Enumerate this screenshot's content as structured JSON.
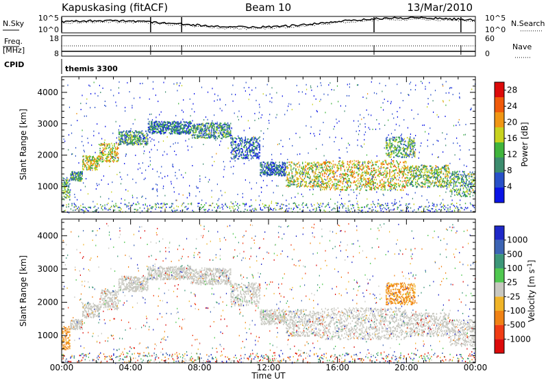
{
  "header": {
    "station": "Kapuskasing (fitACF)",
    "beam": "Beam 10",
    "date": "13/Mar/2010"
  },
  "summary_panels": {
    "nsky_label": "N.Sky",
    "nsearch_label": "N.Search",
    "noise_ticks": [
      "10^5",
      "10^0"
    ],
    "freq_label": "Freq.",
    "freq_unit": "[MHz]",
    "freq_ticks": [
      "18",
      "8"
    ],
    "nave_label": "Nave",
    "nave_ticks": [
      "60",
      "0"
    ],
    "cpid_label": "CPID",
    "cpid_value": "themis 3300"
  },
  "chart_data": [
    {
      "type": "heatmap",
      "name": "power",
      "xlabel": "Time UT",
      "ylabel": "Slant Range [km]",
      "x_ticks": [
        "00:00",
        "04:00",
        "08:00",
        "12:00",
        "16:00",
        "20:00",
        "00:00"
      ],
      "y_ticks": [
        1000,
        2000,
        3000,
        4000
      ],
      "xlim_hours": [
        0,
        24
      ],
      "ylim_km": [
        180,
        4500
      ],
      "colorbar": {
        "label": "Power [dB]",
        "ticks": [
          4,
          8,
          12,
          16,
          20,
          24,
          28
        ],
        "range": [
          0,
          30
        ],
        "colors": [
          "#0a14e6",
          "#2850c8",
          "#3c8c6e",
          "#40b43c",
          "#c8d21e",
          "#f09614",
          "#f05a0a",
          "#dc0a0a"
        ]
      },
      "echo_regions": [
        {
          "t_start": 0.0,
          "t_end": 0.5,
          "r_low": 600,
          "r_high": 1300,
          "level": 12
        },
        {
          "t_start": 0.5,
          "t_end": 1.2,
          "r_low": 1200,
          "r_high": 1500,
          "level": 10
        },
        {
          "t_start": 1.2,
          "t_end": 2.2,
          "r_low": 1550,
          "r_high": 2000,
          "level": 16
        },
        {
          "t_start": 2.2,
          "t_end": 3.3,
          "r_low": 1800,
          "r_high": 2400,
          "level": 18
        },
        {
          "t_start": 3.3,
          "t_end": 5.0,
          "r_low": 2350,
          "r_high": 2800,
          "level": 10
        },
        {
          "t_start": 5.0,
          "t_end": 7.5,
          "r_low": 2700,
          "r_high": 3100,
          "level": 8
        },
        {
          "t_start": 7.5,
          "t_end": 9.8,
          "r_low": 2550,
          "r_high": 3050,
          "level": 10
        },
        {
          "t_start": 9.8,
          "t_end": 11.5,
          "r_low": 1900,
          "r_high": 2600,
          "level": 6
        },
        {
          "t_start": 11.5,
          "t_end": 13.0,
          "r_low": 1350,
          "r_high": 1800,
          "level": 6
        },
        {
          "t_start": 13.0,
          "t_end": 15.0,
          "r_low": 1000,
          "r_high": 1800,
          "level": 16
        },
        {
          "t_start": 15.0,
          "t_end": 20.0,
          "r_low": 900,
          "r_high": 1850,
          "level": 18
        },
        {
          "t_start": 20.0,
          "t_end": 22.5,
          "r_low": 1000,
          "r_high": 1700,
          "level": 14
        },
        {
          "t_start": 22.5,
          "t_end": 24.0,
          "r_low": 700,
          "r_high": 1500,
          "level": 12
        },
        {
          "t_start": 18.8,
          "t_end": 20.5,
          "r_low": 1950,
          "r_high": 2600,
          "level": 12
        }
      ]
    },
    {
      "type": "heatmap",
      "name": "velocity",
      "xlabel": "Time UT",
      "ylabel": "Slant Range [km]",
      "x_ticks": [
        "00:00",
        "04:00",
        "08:00",
        "12:00",
        "16:00",
        "20:00",
        "00:00"
      ],
      "y_ticks": [
        1000,
        2000,
        3000,
        4000
      ],
      "xlim_hours": [
        0,
        24
      ],
      "ylim_km": [
        180,
        4500
      ],
      "colorbar": {
        "label": "Velocity [m s^-1]",
        "ticks": [
          1000,
          500,
          100,
          25,
          -25,
          -100,
          -500,
          -1000
        ],
        "colors": [
          "#1e28c8",
          "#3c64b4",
          "#3c9678",
          "#50c850",
          "#c8c8c0",
          "#f0b428",
          "#f08214",
          "#f03c14",
          "#dc0a0a"
        ]
      },
      "echo_regions": [
        {
          "t_start": 0.0,
          "t_end": 0.5,
          "r_low": 600,
          "r_high": 1300,
          "level": "-500"
        },
        {
          "t_start": 0.5,
          "t_end": 24.0,
          "r_low": 900,
          "r_high": 3100,
          "level": "25"
        },
        {
          "t_start": 18.8,
          "t_end": 20.5,
          "r_low": 1950,
          "r_high": 2600,
          "level": "-500"
        }
      ]
    }
  ]
}
